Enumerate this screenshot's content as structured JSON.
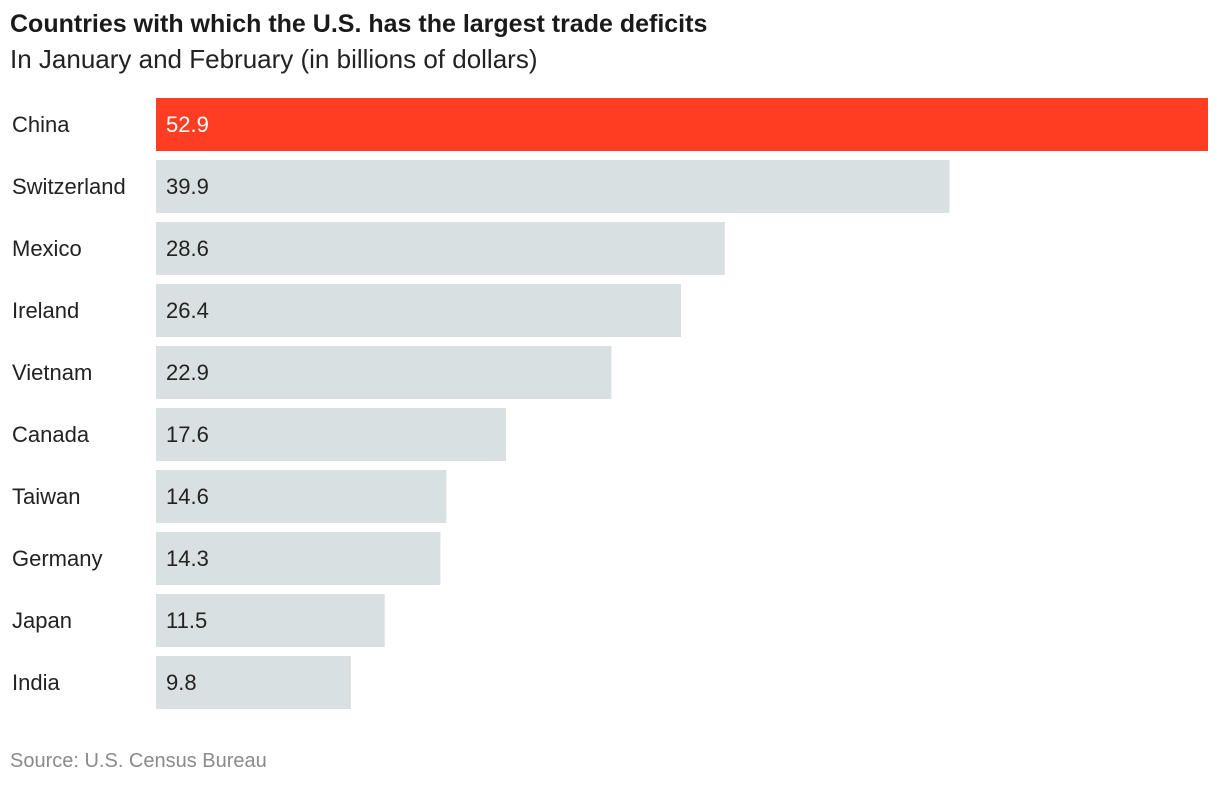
{
  "chart_data": {
    "type": "bar",
    "orientation": "horizontal",
    "title": "Countries with which the U.S. has the largest trade deficits",
    "subtitle": "In January and February (in billions of dollars)",
    "xlabel": "",
    "ylabel": "",
    "categories": [
      "China",
      "Switzerland",
      "Mexico",
      "Ireland",
      "Vietnam",
      "Canada",
      "Taiwan",
      "Germany",
      "Japan",
      "India"
    ],
    "values": [
      52.9,
      39.9,
      28.6,
      26.4,
      22.9,
      17.6,
      14.6,
      14.3,
      11.5,
      9.8
    ],
    "value_labels": [
      "52.9",
      "39.9",
      "28.6",
      "26.4",
      "22.9",
      "17.6",
      "14.6",
      "14.3",
      "11.5",
      "9.8"
    ],
    "xlim": [
      0,
      52.9
    ],
    "highlight_index": 0,
    "grid": false,
    "legend": "none"
  },
  "colors": {
    "highlight_bar": "#ff3d23",
    "default_bar": "#d9e0e1",
    "highlight_label": "#ffffff",
    "default_label": "#222222"
  },
  "footer": {
    "source": "Source: U.S. Census Bureau"
  }
}
